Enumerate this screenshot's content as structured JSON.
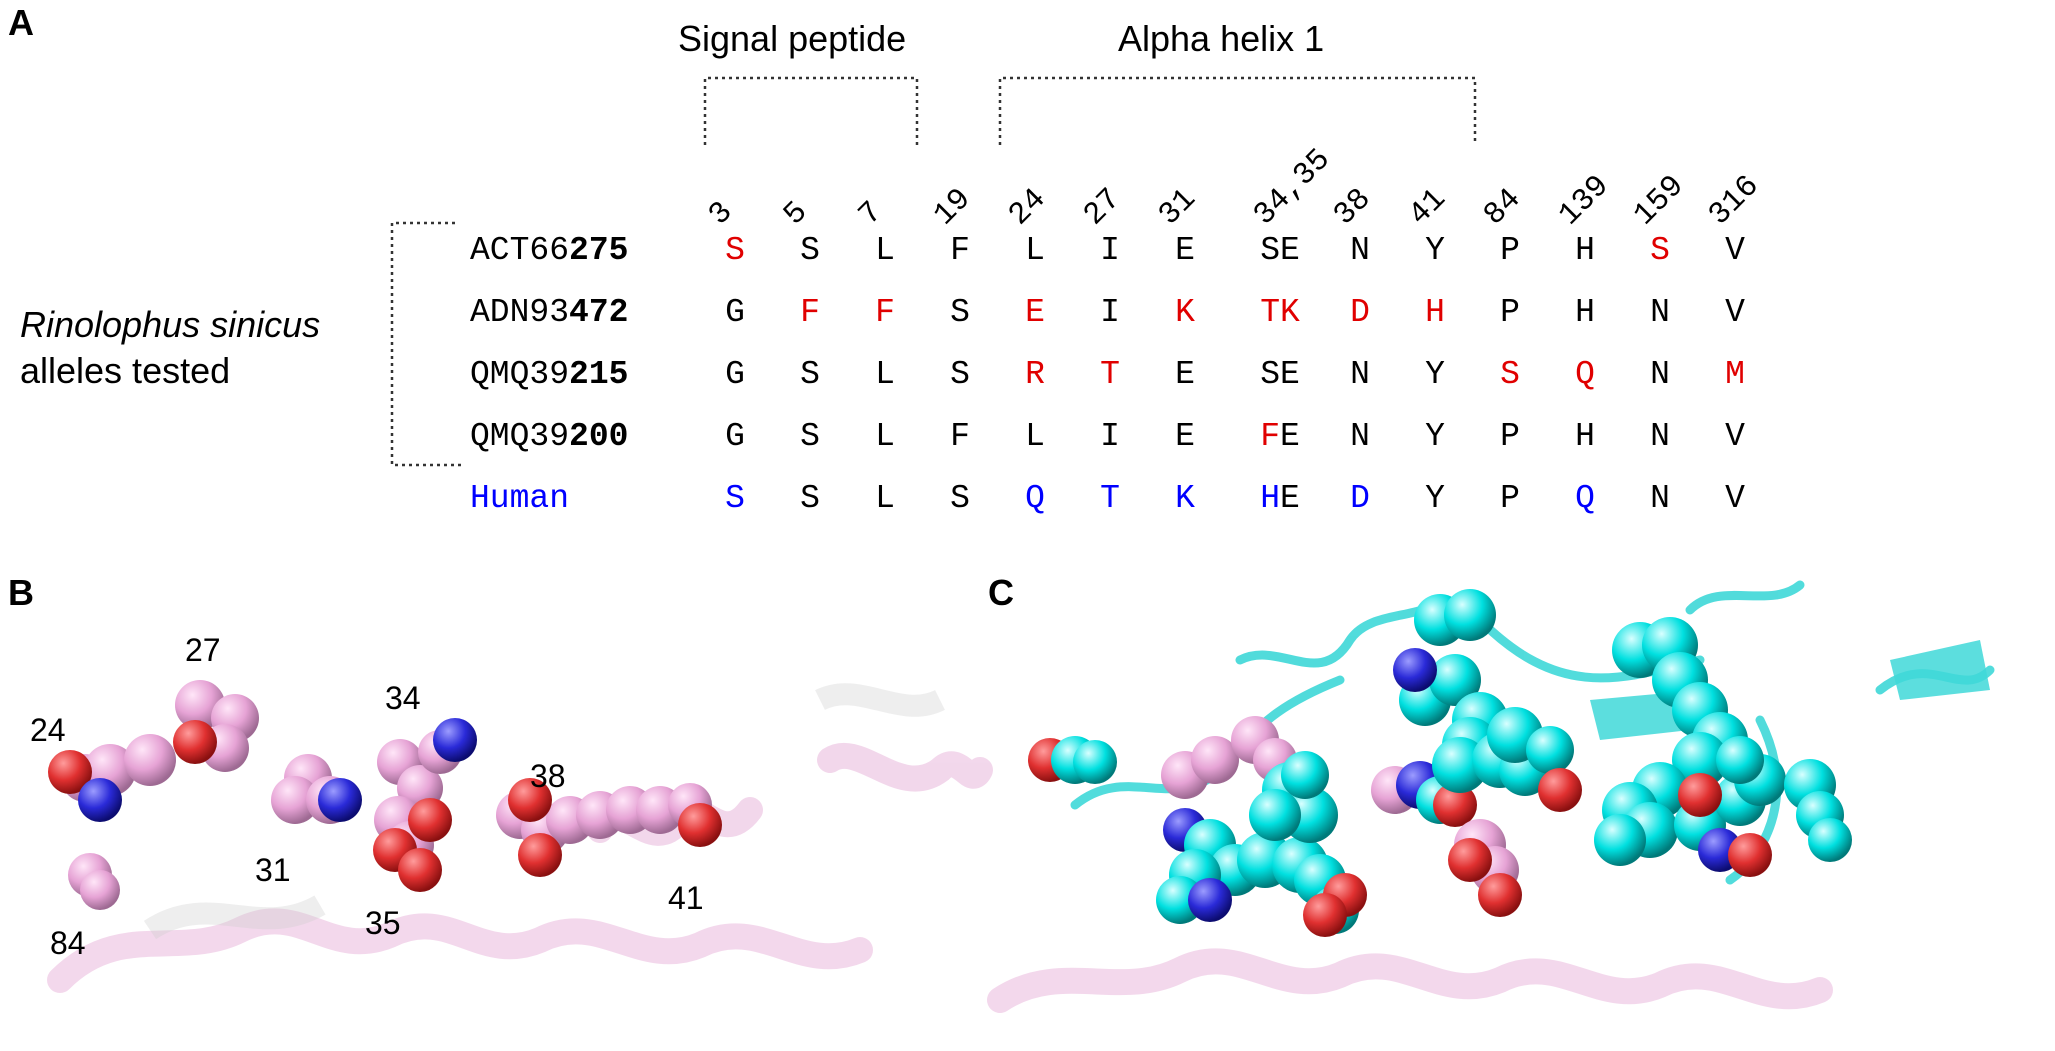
{
  "panels": {
    "a": "A",
    "b": "B",
    "c": "C"
  },
  "headers": {
    "signal": "Signal peptide",
    "helix": "Alpha helix 1"
  },
  "species": {
    "name": "Rinolophus sinicus",
    "suffix": "alleles tested"
  },
  "positions": [
    "3",
    "5",
    "7",
    "19",
    "24",
    "27",
    "31",
    "34,35",
    "38",
    "41",
    "84",
    "139",
    "159",
    "316"
  ],
  "alleles": [
    {
      "prefix": "ACT66",
      "bold": "275",
      "color": "black",
      "residues": [
        [
          "S",
          "r"
        ],
        [
          "S",
          "b"
        ],
        [
          "L",
          "b"
        ],
        [
          "F",
          "b"
        ],
        [
          "L",
          "b"
        ],
        [
          "I",
          "b"
        ],
        [
          "E",
          "b"
        ],
        [
          "SE",
          "b"
        ],
        [
          "N",
          "b"
        ],
        [
          "Y",
          "b"
        ],
        [
          "P",
          "b"
        ],
        [
          "H",
          "b"
        ],
        [
          "S",
          "r"
        ],
        [
          "V",
          "b"
        ]
      ]
    },
    {
      "prefix": "ADN93",
      "bold": "472",
      "color": "black",
      "residues": [
        [
          "G",
          "b"
        ],
        [
          "F",
          "r"
        ],
        [
          "F",
          "r"
        ],
        [
          "S",
          "b"
        ],
        [
          "E",
          "r"
        ],
        [
          "I",
          "b"
        ],
        [
          "K",
          "r"
        ],
        [
          "TK",
          "r"
        ],
        [
          "D",
          "r"
        ],
        [
          "H",
          "r"
        ],
        [
          "P",
          "b"
        ],
        [
          "H",
          "b"
        ],
        [
          "N",
          "b"
        ],
        [
          "V",
          "b"
        ]
      ]
    },
    {
      "prefix": "QMQ39",
      "bold": "215",
      "color": "black",
      "residues": [
        [
          "G",
          "b"
        ],
        [
          "S",
          "b"
        ],
        [
          "L",
          "b"
        ],
        [
          "S",
          "b"
        ],
        [
          "R",
          "r"
        ],
        [
          "T",
          "r"
        ],
        [
          "E",
          "b"
        ],
        [
          "SE",
          "b"
        ],
        [
          "N",
          "b"
        ],
        [
          "Y",
          "b"
        ],
        [
          "S",
          "r"
        ],
        [
          "Q",
          "r"
        ],
        [
          "N",
          "b"
        ],
        [
          "M",
          "r"
        ]
      ]
    },
    {
      "prefix": "QMQ39",
      "bold": "200",
      "color": "black",
      "residues": [
        [
          "G",
          "b"
        ],
        [
          "S",
          "b"
        ],
        [
          "L",
          "b"
        ],
        [
          "F",
          "b"
        ],
        [
          "L",
          "b"
        ],
        [
          "I",
          "b"
        ],
        [
          "E",
          "b"
        ],
        [
          "F|E",
          "r|b"
        ],
        [
          "N",
          "b"
        ],
        [
          "Y",
          "b"
        ],
        [
          "P",
          "b"
        ],
        [
          "H",
          "b"
        ],
        [
          "N",
          "b"
        ],
        [
          "V",
          "b"
        ]
      ]
    },
    {
      "prefix": "Human",
      "bold": "",
      "color": "blue",
      "residues": [
        [
          "S",
          "u"
        ],
        [
          "S",
          "b"
        ],
        [
          "L",
          "b"
        ],
        [
          "S",
          "b"
        ],
        [
          "Q",
          "u"
        ],
        [
          "T",
          "u"
        ],
        [
          "K",
          "u"
        ],
        [
          "H|E",
          "u|b"
        ],
        [
          "D",
          "u"
        ],
        [
          "Y",
          "b"
        ],
        [
          "P",
          "b"
        ],
        [
          "Q",
          "u"
        ],
        [
          "N",
          "b"
        ],
        [
          "V",
          "b"
        ]
      ]
    }
  ],
  "structure_b_labels": [
    "24",
    "27",
    "34",
    "31",
    "35",
    "38",
    "41",
    "84"
  ],
  "colors": {
    "mutant": "#e00000",
    "human": "#0000ff",
    "bat_residue": "#e6a3d5",
    "human_residue": "#00e5e5",
    "oxygen": "#e03030",
    "nitrogen": "#2a2ad8",
    "cartoon": "#e9b8dc"
  }
}
